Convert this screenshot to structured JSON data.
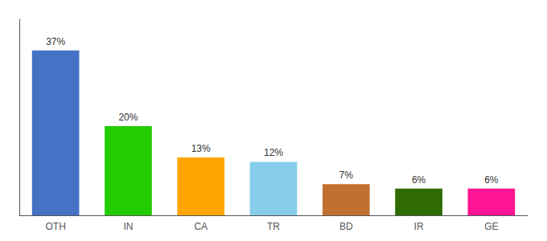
{
  "chart_data": {
    "type": "bar",
    "categories": [
      "OTH",
      "IN",
      "CA",
      "TR",
      "BD",
      "IR",
      "GE"
    ],
    "values": [
      37,
      20,
      13,
      12,
      7,
      6,
      6
    ],
    "value_labels": [
      "37%",
      "20%",
      "13%",
      "12%",
      "7%",
      "6%",
      "6%"
    ],
    "data_labels": true,
    "colors": [
      "#4472C4",
      "#22CC00",
      "#FFA500",
      "#87CEEB",
      "#C07030",
      "#2E6B00",
      "#FF1493"
    ],
    "ylim": [
      0,
      44
    ],
    "grid": false,
    "tick_labels": "x"
  }
}
